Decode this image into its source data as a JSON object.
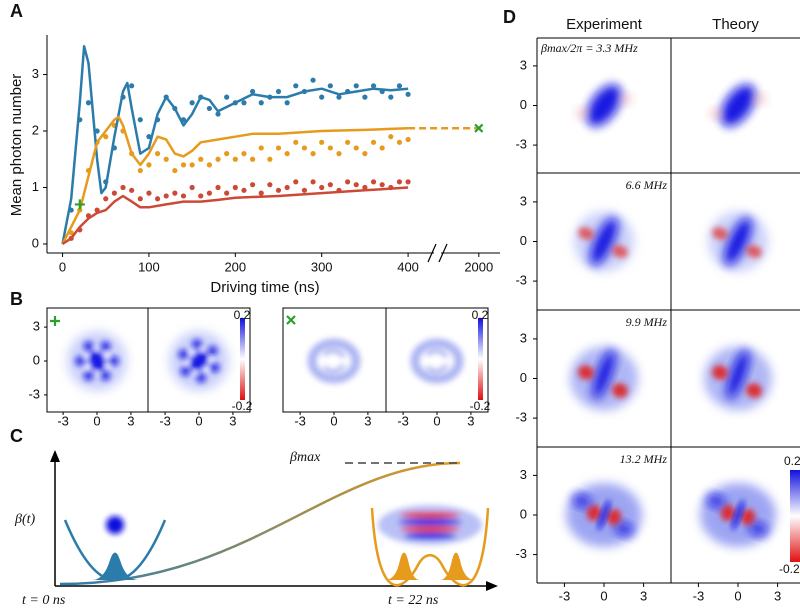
{
  "chart_data": {
    "type": "line",
    "panel_label": "A",
    "xlabel": "Driving time (ns)",
    "ylabel": "Mean photon number",
    "xlim": [
      -18,
      2023
    ],
    "x_break": [
      430,
      1959
    ],
    "ylim": [
      -0.16,
      3.7
    ],
    "xticks": [
      0,
      100,
      200,
      300,
      400,
      2000
    ],
    "yticks": [
      0,
      1,
      2,
      3
    ],
    "series": [
      {
        "mode": "scatter",
        "color": "#2b7bab",
        "x": [
          10,
          20,
          30,
          40,
          50,
          60,
          70,
          80,
          90,
          100,
          110,
          120,
          130,
          140,
          150,
          160,
          170,
          180,
          190,
          200,
          210,
          220,
          230,
          240,
          250,
          260,
          270,
          280,
          290,
          300,
          310,
          320,
          330,
          340,
          350,
          360,
          370,
          380,
          390,
          400
        ],
        "values": [
          0.6,
          2.2,
          2.5,
          2.0,
          1.1,
          1.7,
          2.6,
          2.8,
          2.2,
          1.9,
          2.2,
          2.6,
          2.4,
          2.2,
          2.5,
          2.6,
          2.4,
          2.3,
          2.6,
          2.5,
          2.5,
          2.7,
          2.5,
          2.6,
          2.7,
          2.5,
          2.8,
          2.7,
          2.9,
          2.6,
          2.8,
          2.6,
          2.7,
          2.8,
          2.6,
          2.8,
          2.7,
          2.6,
          2.8,
          2.65
        ]
      },
      {
        "mode": "scatter",
        "color": "#e69b1c",
        "x": [
          10,
          20,
          30,
          40,
          50,
          60,
          70,
          80,
          90,
          100,
          110,
          120,
          130,
          140,
          150,
          160,
          170,
          180,
          190,
          200,
          210,
          220,
          230,
          240,
          250,
          260,
          270,
          280,
          290,
          300,
          310,
          320,
          330,
          340,
          350,
          360,
          370,
          380,
          390,
          400
        ],
        "values": [
          0.2,
          0.6,
          1.3,
          1.8,
          1.9,
          2.1,
          2.0,
          1.6,
          1.3,
          1.4,
          1.6,
          1.5,
          1.3,
          1.4,
          1.4,
          1.5,
          1.4,
          1.5,
          1.6,
          1.5,
          1.6,
          1.5,
          1.7,
          1.5,
          1.7,
          1.6,
          1.8,
          1.7,
          1.6,
          1.8,
          1.7,
          1.6,
          1.8,
          1.7,
          1.6,
          1.8,
          1.7,
          1.9,
          1.8,
          1.85
        ]
      },
      {
        "mode": "scatter",
        "color": "#cc4a35",
        "x": [
          10,
          20,
          30,
          40,
          50,
          60,
          70,
          80,
          90,
          100,
          110,
          120,
          130,
          140,
          150,
          160,
          170,
          180,
          190,
          200,
          210,
          220,
          230,
          240,
          250,
          260,
          270,
          280,
          290,
          300,
          310,
          320,
          330,
          340,
          350,
          360,
          370,
          380,
          390,
          400
        ],
        "values": [
          0.1,
          0.25,
          0.5,
          0.6,
          0.8,
          0.9,
          1.0,
          0.95,
          0.8,
          0.9,
          0.8,
          0.85,
          0.9,
          0.85,
          1.0,
          0.85,
          0.9,
          1.0,
          0.9,
          1.0,
          0.95,
          1.05,
          0.9,
          1.05,
          0.95,
          1.0,
          1.1,
          0.95,
          1.1,
          1.0,
          1.05,
          0.95,
          1.1,
          1.05,
          1.0,
          1.1,
          1.05,
          1.0,
          1.1,
          1.1
        ]
      },
      {
        "mode": "line",
        "color": "#2b7bab",
        "x": [
          0,
          10,
          20,
          25,
          30,
          40,
          45,
          50,
          60,
          70,
          75,
          80,
          90,
          100,
          110,
          120,
          130,
          140,
          150,
          160,
          170,
          180,
          200,
          220,
          240,
          260,
          280,
          300,
          320,
          340,
          360,
          380,
          400
        ],
        "values": [
          0,
          0.8,
          2.5,
          3.5,
          3.2,
          1.5,
          0.9,
          1.0,
          1.9,
          2.7,
          2.85,
          2.4,
          1.6,
          1.7,
          2.3,
          2.6,
          2.4,
          2.1,
          2.3,
          2.6,
          2.55,
          2.35,
          2.5,
          2.65,
          2.6,
          2.6,
          2.7,
          2.75,
          2.65,
          2.7,
          2.75,
          2.72,
          2.75
        ]
      },
      {
        "mode": "line",
        "color": "#e69b1c",
        "x": [
          0,
          20,
          30,
          40,
          50,
          60,
          65,
          70,
          80,
          90,
          100,
          110,
          120,
          130,
          140,
          150,
          160,
          180,
          200,
          220,
          250,
          300,
          350,
          400
        ],
        "values": [
          0,
          0.6,
          1.2,
          1.8,
          2.0,
          2.2,
          2.25,
          2.1,
          1.6,
          1.4,
          1.6,
          1.9,
          1.85,
          1.6,
          1.55,
          1.65,
          1.8,
          1.85,
          1.9,
          1.95,
          1.95,
          2.0,
          2.02,
          2.05
        ]
      },
      {
        "mode": "line",
        "color": "#cc4a35",
        "x": [
          0,
          10,
          20,
          30,
          40,
          50,
          60,
          70,
          80,
          90,
          100,
          120,
          140,
          160,
          180,
          200,
          250,
          300,
          350,
          400
        ],
        "values": [
          0,
          0.1,
          0.3,
          0.45,
          0.55,
          0.6,
          0.75,
          0.85,
          0.75,
          0.65,
          0.65,
          0.7,
          0.75,
          0.75,
          0.78,
          0.82,
          0.85,
          0.9,
          0.95,
          1.0
        ]
      },
      {
        "mode": "line",
        "dash": true,
        "color": "#e69b1c",
        "x": [
          400,
          2000
        ],
        "values": [
          2.05,
          2.05
        ]
      },
      {
        "mode": "marker",
        "marker": "plus",
        "color": "#2ca02c",
        "x": [
          20
        ],
        "values": [
          0.7
        ]
      },
      {
        "mode": "marker",
        "marker": "cross",
        "color": "#2ca02c",
        "x": [
          2000
        ],
        "values": [
          2.05
        ]
      }
    ]
  },
  "panel_b": {
    "label": "B",
    "xticks": [
      -3,
      0,
      3
    ],
    "yticks": [
      3,
      0,
      -3
    ],
    "colorbar": [
      0.2,
      -0.2
    ]
  },
  "panel_c": {
    "label": "C",
    "y_label": "β(t)",
    "beta_max": "βmax",
    "t_start": "t = 0 ns",
    "t_end": "t = 22 ns"
  },
  "panel_d": {
    "label": "D",
    "columns": [
      "Experiment",
      "Theory"
    ],
    "rows": [
      "βmax/2π = 3.3 MHz",
      "6.6 MHz",
      "9.9 MHz",
      "13.2 MHz"
    ],
    "xticks": [
      -3,
      0,
      3
    ],
    "yticks": [
      3,
      0,
      -3
    ],
    "colorbar": [
      0.2,
      -0.2
    ]
  }
}
